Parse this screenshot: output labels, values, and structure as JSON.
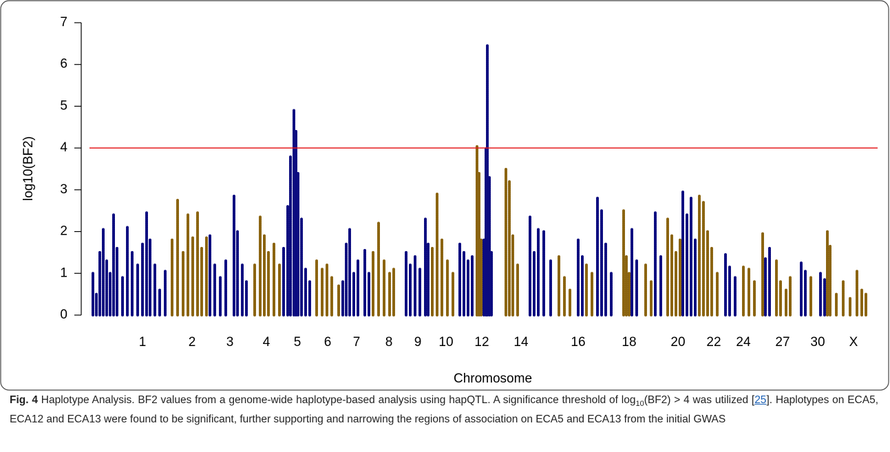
{
  "chart_data": {
    "type": "manhattan",
    "ylabel": "log10(BF2)",
    "xlabel": "Chromosome",
    "ylim": [
      0,
      7
    ],
    "yticks": [
      0,
      1,
      2,
      3,
      4,
      5,
      6,
      7
    ],
    "xlim": [
      0,
      1145
    ],
    "xticks": [
      {
        "value": 77,
        "label": "1"
      },
      {
        "value": 149,
        "label": "2"
      },
      {
        "value": 204,
        "label": "3"
      },
      {
        "value": 257,
        "label": "4"
      },
      {
        "value": 302,
        "label": "5"
      },
      {
        "value": 346,
        "label": "6"
      },
      {
        "value": 388,
        "label": "7"
      },
      {
        "value": 435,
        "label": "8"
      },
      {
        "value": 477,
        "label": "9"
      },
      {
        "value": 518,
        "label": "10"
      },
      {
        "value": 570,
        "label": "12"
      },
      {
        "value": 627,
        "label": "14"
      },
      {
        "value": 710,
        "label": "16"
      },
      {
        "value": 784,
        "label": "18"
      },
      {
        "value": 855,
        "label": "20"
      },
      {
        "value": 907,
        "label": "22"
      },
      {
        "value": 950,
        "label": "24"
      },
      {
        "value": 1007,
        "label": "27"
      },
      {
        "value": 1058,
        "label": "30"
      },
      {
        "value": 1110,
        "label": "X"
      }
    ],
    "threshold": 4,
    "threshold_color": "#e41a1c",
    "series": [
      {
        "color": "#0b0b80",
        "x": [
          5,
          10,
          15,
          20,
          25,
          30,
          35,
          40,
          48,
          55,
          62,
          70,
          77,
          83,
          88,
          95,
          102,
          110,
          175,
          182,
          190,
          198,
          210,
          215,
          222,
          228,
          282,
          288,
          292,
          297,
          300,
          303,
          308,
          314,
          320,
          368,
          373,
          378,
          384,
          390,
          400,
          406,
          460,
          466,
          473,
          480,
          488,
          492,
          538,
          544,
          550,
          556,
          573,
          576,
          578,
          581,
          584,
          640,
          646,
          652,
          660,
          670,
          710,
          716,
          738,
          744,
          750,
          758,
          788,
          795,
          822,
          830,
          862,
          868,
          874,
          880,
          924,
          930,
          938,
          982,
          988,
          1034,
          1040,
          1062,
          1068
        ],
        "values": [
          1.0,
          0.5,
          1.5,
          2.05,
          1.3,
          1.0,
          2.4,
          1.6,
          0.9,
          2.1,
          1.5,
          1.2,
          1.7,
          2.45,
          1.8,
          1.2,
          0.6,
          1.05,
          1.9,
          1.2,
          0.9,
          1.3,
          2.85,
          2.0,
          1.2,
          0.8,
          1.6,
          2.6,
          3.8,
          4.9,
          4.4,
          3.4,
          2.3,
          1.1,
          0.8,
          0.8,
          1.7,
          2.05,
          1.0,
          1.3,
          1.55,
          1.0,
          1.5,
          1.2,
          1.4,
          1.1,
          2.3,
          1.7,
          1.7,
          1.5,
          1.3,
          1.4,
          1.8,
          4.0,
          6.45,
          3.3,
          1.5,
          2.35,
          1.5,
          2.05,
          2.0,
          1.3,
          1.8,
          1.4,
          2.8,
          2.5,
          1.7,
          1.0,
          2.05,
          1.3,
          2.45,
          1.4,
          2.95,
          2.4,
          2.8,
          1.8,
          1.45,
          1.15,
          0.9,
          1.35,
          1.6,
          1.25,
          1.05,
          1.0,
          0.85
        ]
      },
      {
        "color": "#8b6410",
        "x": [
          120,
          128,
          136,
          143,
          150,
          157,
          163,
          170,
          240,
          248,
          254,
          260,
          268,
          276,
          330,
          338,
          345,
          352,
          362,
          412,
          420,
          428,
          436,
          442,
          498,
          505,
          512,
          520,
          528,
          563,
          566,
          569,
          605,
          610,
          615,
          622,
          682,
          690,
          698,
          722,
          730,
          776,
          780,
          784,
          808,
          816,
          840,
          846,
          852,
          858,
          886,
          892,
          898,
          904,
          912,
          950,
          958,
          966,
          978,
          998,
          1004,
          1012,
          1018,
          1048,
          1072,
          1076,
          1085,
          1095,
          1105,
          1115,
          1122,
          1128
        ],
        "values": [
          1.8,
          2.75,
          1.5,
          2.4,
          1.85,
          2.45,
          1.6,
          1.85,
          1.2,
          2.35,
          1.9,
          1.5,
          1.7,
          1.2,
          1.3,
          1.1,
          1.2,
          0.9,
          0.7,
          1.5,
          2.2,
          1.3,
          1.0,
          1.1,
          1.6,
          2.9,
          1.8,
          1.3,
          1.0,
          4.05,
          3.4,
          1.8,
          3.5,
          3.2,
          1.9,
          1.2,
          1.4,
          0.9,
          0.6,
          1.2,
          1.0,
          2.5,
          1.4,
          1.0,
          1.2,
          0.8,
          2.3,
          1.9,
          1.5,
          1.8,
          2.85,
          2.7,
          2.0,
          1.6,
          1.0,
          1.15,
          1.1,
          0.8,
          1.95,
          1.3,
          0.8,
          0.6,
          0.9,
          0.9,
          2.0,
          1.65,
          0.5,
          0.8,
          0.4,
          1.05,
          0.6,
          0.5
        ]
      }
    ]
  },
  "caption": {
    "label": "Fig. 4",
    "title": "Haplotype Analysis.",
    "text_1": "BF2 values from a genome-wide haplotype-based analysis using hapQTL. A significance threshold of log",
    "subscript": "10",
    "text_2": "(BF2) > 4 was utilized [",
    "ref": "25",
    "text_3": "]. Haplotypes on ECA5, ECA12 and ECA13 were found to be significant, further supporting and narrowing the regions of association on ECA5 and ECA13 from the initial GWAS"
  }
}
